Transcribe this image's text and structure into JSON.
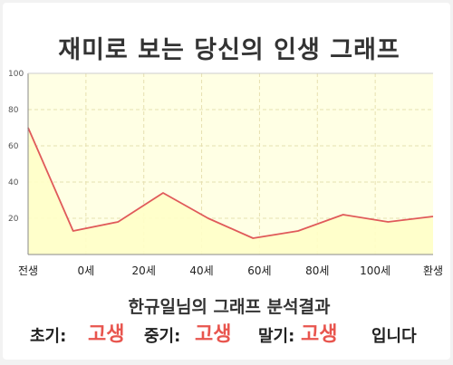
{
  "title": "재미로 보는 당신의 인생 그래프",
  "caption": "한규일님의 그래프 분석결과",
  "result": {
    "early_label": "초기:",
    "early_value": "고생",
    "middle_label": "중기:",
    "middle_value": "고생",
    "late_label": "말기:",
    "late_value": "고생",
    "suffix": "입니다"
  },
  "colors": {
    "line": "#e05a5a",
    "fill": "#ffffc8",
    "plot_bg": "#ffffe4",
    "highlight": "#e8554e"
  },
  "chart_data": {
    "type": "area",
    "title": "",
    "xlabel": "",
    "ylabel": "",
    "ylim": [
      0,
      100
    ],
    "yticks": [
      20,
      40,
      60,
      80,
      100
    ],
    "grid": true,
    "x_tick_labels": [
      "전생",
      "0세",
      "20세",
      "40세",
      "60세",
      "80세",
      "100세",
      "환생"
    ],
    "series": [
      {
        "values": [
          70,
          13,
          18,
          34,
          20,
          9,
          13,
          22,
          18,
          21
        ]
      }
    ]
  }
}
